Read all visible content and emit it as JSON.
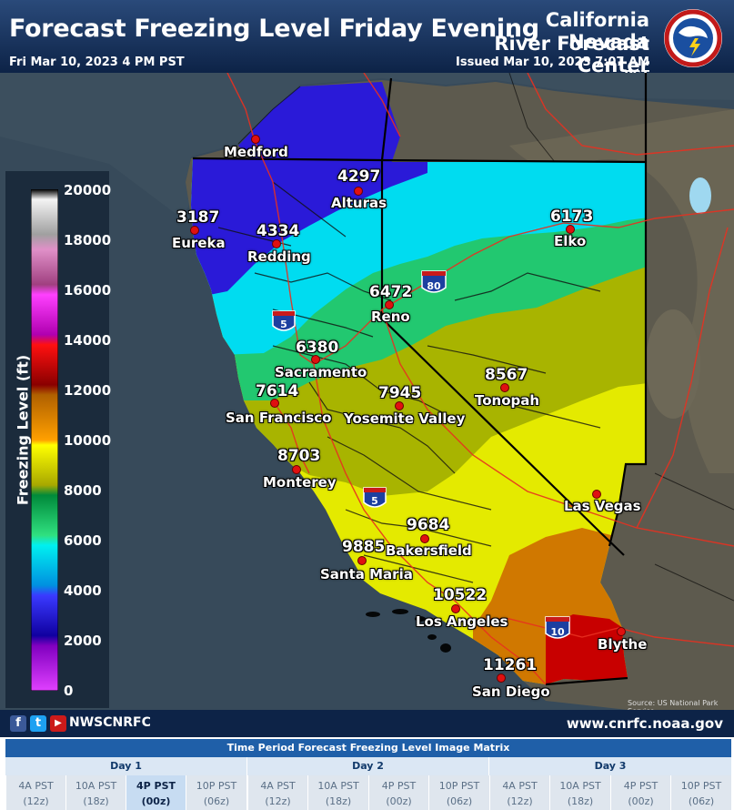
{
  "header": {
    "title": "Forecast Freezing Level Friday Evening",
    "valid_time": "Fri Mar 10, 2023 4 PM PST",
    "center_line1": "California Nevada",
    "center_line2": "River Forecast Center",
    "issued": "Issued Mar 10, 2023 7:07 AM PST",
    "logo": "noaa-nws-seal-icon"
  },
  "legend": {
    "title": "Freezing Level (ft)",
    "ticks": [
      "20000",
      "18000",
      "16000",
      "14000",
      "12000",
      "10000",
      "8000",
      "6000",
      "4000",
      "2000",
      "0"
    ]
  },
  "highways": [
    "5",
    "80",
    "5",
    "10"
  ],
  "cities": [
    {
      "name": "Medford",
      "value": ""
    },
    {
      "name": "Alturas",
      "value": "4297"
    },
    {
      "name": "Eureka",
      "value": "3187"
    },
    {
      "name": "Redding",
      "value": "4334"
    },
    {
      "name": "Elko",
      "value": "6173"
    },
    {
      "name": "Reno",
      "value": "6472"
    },
    {
      "name": "Sacramento",
      "value": "6380"
    },
    {
      "name": "Tonopah",
      "value": "8567"
    },
    {
      "name": "San Francisco",
      "value": "7614"
    },
    {
      "name": "Yosemite Valley",
      "value": "7945"
    },
    {
      "name": "Monterey",
      "value": "8703"
    },
    {
      "name": "Las Vegas",
      "value": ""
    },
    {
      "name": "Bakersfield",
      "value": "9684"
    },
    {
      "name": "Santa Maria",
      "value": "9885"
    },
    {
      "name": "Los Angeles",
      "value": "10522"
    },
    {
      "name": "Blythe",
      "value": ""
    },
    {
      "name": "San Diego",
      "value": "11261"
    }
  ],
  "source": "Source: US National Park Service",
  "footer": {
    "social": [
      "f",
      "t",
      "▶"
    ],
    "social_icons": [
      "facebook-icon",
      "twitter-icon",
      "youtube-icon"
    ],
    "handle": "NWSCNRFC",
    "website": "www.cnrfc.noaa.gov"
  },
  "matrix": {
    "title": "Time Period Forecast Freezing Level Image Matrix",
    "days": [
      "Day 1",
      "Day 2",
      "Day 3"
    ],
    "cells": [
      {
        "time": "4A PST",
        "utc": "(12z)"
      },
      {
        "time": "10A PST",
        "utc": "(18z)"
      },
      {
        "time": "4P PST",
        "utc": "(00z)"
      },
      {
        "time": "10P PST",
        "utc": "(06z)"
      },
      {
        "time": "4A PST",
        "utc": "(12z)"
      },
      {
        "time": "10A PST",
        "utc": "(18z)"
      },
      {
        "time": "4P PST",
        "utc": "(00z)"
      },
      {
        "time": "10P PST",
        "utc": "(06z)"
      },
      {
        "time": "4A PST",
        "utc": "(12z)"
      },
      {
        "time": "10A PST",
        "utc": "(18z)"
      },
      {
        "time": "4P PST",
        "utc": "(00z)"
      },
      {
        "time": "10P PST",
        "utc": "(06z)"
      }
    ],
    "selected_index": 2
  },
  "colors": {
    "ocean": "#374a5a",
    "land": "#5d5a4e",
    "band_2000_4000": "#2a1ad8",
    "band_4000_6000": "#00dcf0",
    "band_6000_8000": "#22c870",
    "band_8000_9000": "#a8b400",
    "band_9000_10000": "#e4ea00",
    "band_10000_12000": "#d07800",
    "band_12000_14000": "#c80000",
    "rivers": "#e83020"
  }
}
